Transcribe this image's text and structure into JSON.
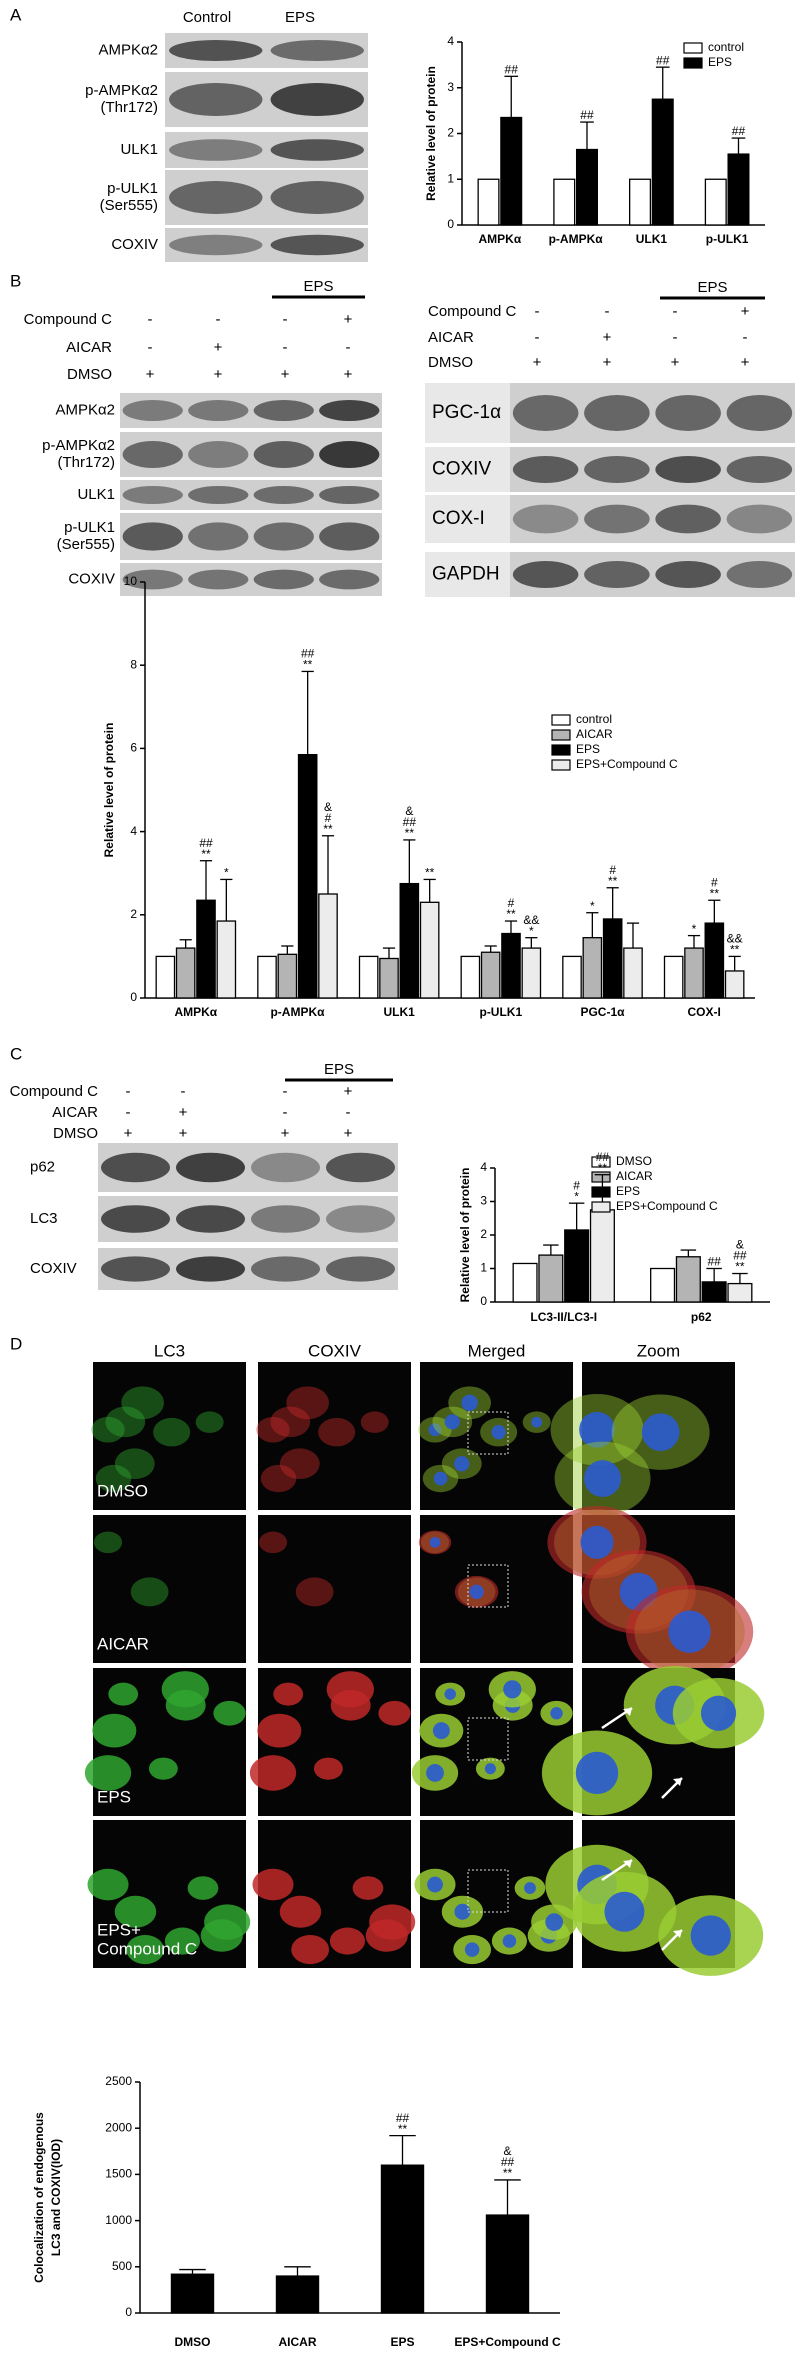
{
  "panels": [
    "A",
    "B",
    "C",
    "D"
  ],
  "blot_a": {
    "columns": [
      "Control",
      "EPS"
    ],
    "rows": [
      [
        "AMPKα2"
      ],
      [
        "p-AMPKα2",
        "(Thr172)"
      ],
      [
        "ULK1"
      ],
      [
        "p-ULK1",
        "(Ser555)"
      ],
      [
        "COXIV"
      ]
    ]
  },
  "blot_b1": {
    "group": "EPS",
    "treatments": [
      {
        "name": "Compound C",
        "signs": [
          "-",
          "-",
          "-",
          "+"
        ]
      },
      {
        "name": "AICAR",
        "signs": [
          "-",
          "+",
          "-",
          "-"
        ]
      },
      {
        "name": "DMSO",
        "signs": [
          "+",
          "+",
          "+",
          "+"
        ]
      }
    ],
    "rows": [
      [
        "AMPKα2"
      ],
      [
        "p-AMPKα2",
        "(Thr172)"
      ],
      [
        "ULK1"
      ],
      [
        "p-ULK1",
        "(Ser555)"
      ],
      [
        "COXIV"
      ]
    ]
  },
  "blot_b2": {
    "group": "EPS",
    "treatments": [
      {
        "name": "Compound C",
        "signs": [
          "-",
          "-",
          "-",
          "+"
        ]
      },
      {
        "name": "AICAR",
        "signs": [
          "-",
          "+",
          "-",
          "-"
        ]
      },
      {
        "name": "DMSO",
        "signs": [
          "+",
          "+",
          "+",
          "+"
        ]
      }
    ],
    "rows": [
      [
        "PGC-1α"
      ],
      [
        "COXIV"
      ],
      [
        "COX-I"
      ],
      [
        "GAPDH"
      ]
    ]
  },
  "blot_c": {
    "group": "EPS",
    "treatments": [
      {
        "name": "Compound C",
        "signs": [
          "-",
          "-",
          "-",
          "+"
        ]
      },
      {
        "name": "AICAR",
        "signs": [
          "-",
          "+",
          "-",
          "-"
        ]
      },
      {
        "name": "DMSO",
        "signs": [
          "+",
          "+",
          "+",
          "+"
        ]
      }
    ],
    "rows": [
      [
        "p62"
      ],
      [
        "LC3"
      ],
      [
        "COXIV"
      ]
    ]
  },
  "imaging": {
    "columns": [
      "LC3",
      "COXIV",
      "Merged",
      "Zoom"
    ],
    "rows": [
      [
        "DMSO"
      ],
      [
        "AICAR"
      ],
      [
        "EPS"
      ],
      [
        "EPS+",
        "Compound C"
      ]
    ]
  },
  "chart_data": [
    {
      "type": "bar",
      "ylabel": "Relative level of protein",
      "categories": [
        "AMPKα",
        "p-AMPKα",
        "ULK1",
        "p-ULK1"
      ],
      "ylim": [
        0,
        4
      ],
      "yticks": [
        0,
        1,
        2,
        3,
        4
      ],
      "series": [
        {
          "name": "control",
          "color": "#ffffff",
          "values": [
            1,
            1,
            1,
            1
          ]
        },
        {
          "name": "EPS",
          "color": "#000000",
          "values": [
            2.35,
            1.65,
            2.75,
            1.55
          ],
          "errors": [
            0.9,
            0.6,
            0.7,
            0.35
          ],
          "annotations": [
            [
              "##"
            ],
            [
              "##"
            ],
            [
              "##"
            ],
            [
              "##"
            ]
          ]
        }
      ]
    },
    {
      "type": "bar",
      "ylabel": "Relative level of protein",
      "categories": [
        "AMPKα",
        "p-AMPKα",
        "ULK1",
        "p-ULK1",
        "PGC-1α",
        "COX-I"
      ],
      "ylim": [
        0,
        10
      ],
      "yticks": [
        0,
        2,
        4,
        6,
        8,
        10
      ],
      "series": [
        {
          "name": "control",
          "color": "#ffffff",
          "values": [
            1,
            1,
            1,
            1,
            1,
            1
          ]
        },
        {
          "name": "AICAR",
          "color": "#b4b4b4",
          "values": [
            1.2,
            1.05,
            0.95,
            1.1,
            1.45,
            1.2
          ],
          "errors": [
            0.2,
            0.2,
            0.25,
            0.15,
            0.6,
            0.3
          ],
          "annotations": [
            null,
            null,
            null,
            null,
            [
              "*"
            ],
            [
              "*"
            ]
          ]
        },
        {
          "name": "EPS",
          "color": "#000000",
          "values": [
            2.35,
            5.85,
            2.75,
            1.55,
            1.9,
            1.8
          ],
          "errors": [
            0.95,
            2.0,
            1.05,
            0.3,
            0.75,
            0.55
          ],
          "annotations": [
            [
              "##",
              "**"
            ],
            [
              "##",
              "**"
            ],
            [
              "&",
              "##",
              "**"
            ],
            [
              "#",
              "**"
            ],
            [
              "#",
              "**"
            ],
            [
              "#",
              "**"
            ]
          ]
        },
        {
          "name": "EPS+Compound C",
          "color": "#ececec",
          "values": [
            1.85,
            2.5,
            2.3,
            1.2,
            1.2,
            0.65
          ],
          "errors": [
            1.0,
            1.4,
            0.55,
            0.25,
            0.6,
            0.35
          ],
          "annotations": [
            [
              "*"
            ],
            [
              "&",
              "#",
              "**"
            ],
            [
              "**"
            ],
            [
              "&&",
              "*"
            ],
            null,
            [
              "&&",
              "**"
            ]
          ]
        }
      ]
    },
    {
      "type": "bar",
      "ylabel": "Relative level of protein",
      "categories": [
        "LC3-II/LC3-I",
        "p62"
      ],
      "ylim": [
        0,
        4
      ],
      "yticks": [
        0,
        1,
        2,
        3,
        4
      ],
      "series": [
        {
          "name": "DMSO",
          "color": "#ffffff",
          "values": [
            1.15,
            1.0
          ]
        },
        {
          "name": "AICAR",
          "color": "#b4b4b4",
          "values": [
            1.4,
            1.35
          ],
          "errors": [
            0.3,
            0.2
          ]
        },
        {
          "name": "EPS",
          "color": "#000000",
          "values": [
            2.15,
            0.6
          ],
          "errors": [
            0.8,
            0.4
          ],
          "annotations": [
            [
              "#",
              "*"
            ],
            [
              "##"
            ]
          ]
        },
        {
          "name": "EPS+Compound C",
          "color": "#ececec",
          "values": [
            2.75,
            0.55
          ],
          "errors": [
            1.05,
            0.3
          ],
          "annotations": [
            [
              "##",
              "**"
            ],
            [
              "&",
              "##",
              "**"
            ]
          ]
        }
      ]
    },
    {
      "type": "bar",
      "ylabel": [
        "Colocalization of endogenous",
        "LC3 and COXIV(IOD)"
      ],
      "categories": [
        "DMSO",
        "AICAR",
        "EPS",
        "EPS+Compound C"
      ],
      "ylim": [
        0,
        2500
      ],
      "yticks": [
        0,
        500,
        1000,
        1500,
        2000,
        2500
      ],
      "series": [
        {
          "color": "#000000",
          "values": [
            420,
            400,
            1600,
            1060
          ],
          "errors": [
            50,
            100,
            320,
            380
          ],
          "annotations": [
            null,
            null,
            [
              "##",
              "**"
            ],
            [
              "&",
              "##",
              "**"
            ]
          ]
        }
      ]
    }
  ]
}
